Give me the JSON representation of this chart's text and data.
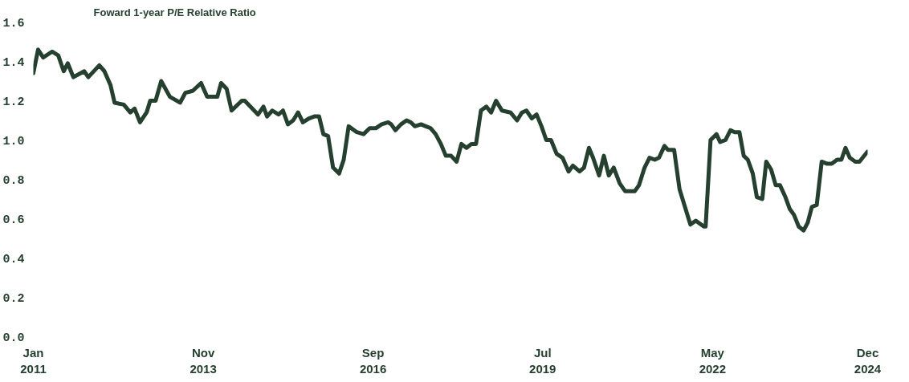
{
  "chart_data": {
    "type": "line",
    "title": "Foward 1-year P/E Relative Ratio",
    "xlim": [
      "2011-01",
      "2024-12"
    ],
    "ylim": [
      0,
      1.6
    ],
    "xticks": [
      {
        "value": "2011-01",
        "label": "Jan\n2011"
      },
      {
        "value": "2013-11",
        "label": "Nov\n2013"
      },
      {
        "value": "2016-09",
        "label": "Sep\n2016"
      },
      {
        "value": "2019-07",
        "label": "Jul\n2019"
      },
      {
        "value": "2022-05",
        "label": "May\n2022"
      },
      {
        "value": "2024-12",
        "label": "Dec\n2024"
      }
    ],
    "yticks": [
      {
        "value": 0,
        "label": "0.0"
      },
      0.2,
      0.4,
      0.6,
      0.8,
      {
        "value": 1,
        "label": "1.0"
      },
      1.2,
      1.4,
      1.6
    ],
    "grid": false,
    "series": [
      {
        "color": "#26402f",
        "x": [
          "2011-01-01",
          "2011-01-30",
          "2011-03-02",
          "2011-04-26",
          "2011-06-02",
          "2011-07-05",
          "2011-07-30",
          "2011-09-02",
          "2011-11-07",
          "2011-12-02",
          "2012-02-07",
          "2012-03-09",
          "2012-04-15",
          "2012-05-10",
          "2012-07-05",
          "2012-08-14",
          "2012-09-09",
          "2012-10-12",
          "2012-11-21",
          "2012-12-13",
          "2013-01-15",
          "2013-02-18",
          "2013-04-12",
          "2013-06-13",
          "2013-07-15",
          "2013-08-29",
          "2013-10-19",
          "2013-11-25",
          "2013-12-27",
          "2014-01-26",
          "2014-02-18",
          "2014-03-24",
          "2014-04-23",
          "2014-06-24",
          "2014-07-12",
          "2014-10-01",
          "2014-11-03",
          "2014-11-25",
          "2014-12-27",
          "2015-02-03",
          "2015-03-02",
          "2015-04-01",
          "2015-05-03",
          "2015-06-02",
          "2015-07-01",
          "2015-08-07",
          "2015-09-09",
          "2015-10-08",
          "2015-11-03",
          "2015-12-02",
          "2016-01-01",
          "2016-02-07",
          "2016-03-06",
          "2016-04-05",
          "2016-05-25",
          "2016-07-05",
          "2016-08-11",
          "2016-09-17",
          "2016-10-23",
          "2016-12-02",
          "2016-12-20",
          "2017-01-15",
          "2017-02-18",
          "2017-03-24",
          "2017-04-19",
          "2017-05-14",
          "2017-06-20",
          "2017-07-19",
          "2017-08-18",
          "2017-09-17",
          "2017-10-19",
          "2017-11-18",
          "2017-12-20",
          "2018-01-23",
          "2018-02-21",
          "2018-03-24",
          "2018-04-23",
          "2018-05-21",
          "2018-06-20",
          "2018-07-23",
          "2018-08-21",
          "2018-09-20",
          "2018-10-26",
          "2018-12-17",
          "2019-01-26",
          "2019-02-25",
          "2019-03-24",
          "2019-04-26",
          "2019-05-25",
          "2019-06-24",
          "2019-07-23",
          "2019-08-21",
          "2019-09-24",
          "2019-10-30",
          "2019-12-06",
          "2020-01-01",
          "2020-02-11",
          "2020-03-09",
          "2020-04-08",
          "2020-05-03",
          "2020-06-09",
          "2020-07-08",
          "2020-08-07",
          "2020-09-06",
          "2020-10-12",
          "2020-11-14",
          "2021-01-12",
          "2021-02-07",
          "2021-03-13",
          "2021-04-12",
          "2021-05-14",
          "2021-06-09",
          "2021-07-12",
          "2021-08-03",
          "2021-09-09",
          "2021-10-12",
          "2021-11-14",
          "2021-12-17",
          "2022-01-19",
          "2022-03-09",
          "2022-03-20",
          "2022-04-19",
          "2022-05-25",
          "2022-06-16",
          "2022-07-19",
          "2022-08-18",
          "2022-09-13",
          "2022-10-12",
          "2022-11-07",
          "2022-12-02",
          "2023-01-01",
          "2023-01-26",
          "2023-02-28",
          "2023-03-24",
          "2023-04-23",
          "2023-05-21",
          "2023-06-16",
          "2023-07-19",
          "2023-08-14",
          "2023-09-09",
          "2023-10-08",
          "2023-11-07",
          "2023-12-02",
          "2023-12-27",
          "2024-01-26",
          "2024-02-25",
          "2024-03-27",
          "2024-04-26",
          "2024-05-29",
          "2024-06-24",
          "2024-07-19",
          "2024-08-14",
          "2024-09-17",
          "2024-10-12",
          "2024-11-29"
        ],
        "values": [
          1.34,
          1.46,
          1.42,
          1.45,
          1.43,
          1.35,
          1.39,
          1.32,
          1.35,
          1.32,
          1.38,
          1.35,
          1.28,
          1.19,
          1.18,
          1.14,
          1.16,
          1.09,
          1.14,
          1.2,
          1.2,
          1.3,
          1.22,
          1.19,
          1.24,
          1.25,
          1.29,
          1.22,
          1.22,
          1.22,
          1.29,
          1.26,
          1.15,
          1.2,
          1.2,
          1.13,
          1.17,
          1.12,
          1.15,
          1.13,
          1.15,
          1.08,
          1.1,
          1.14,
          1.09,
          1.11,
          1.12,
          1.12,
          1.03,
          1.02,
          0.86,
          0.83,
          0.9,
          1.07,
          1.04,
          1.03,
          1.06,
          1.06,
          1.08,
          1.09,
          1.08,
          1.05,
          1.08,
          1.1,
          1.09,
          1.07,
          1.08,
          1.07,
          1.06,
          1.03,
          0.98,
          0.92,
          0.92,
          0.89,
          0.98,
          0.96,
          0.98,
          0.98,
          1.15,
          1.17,
          1.14,
          1.2,
          1.15,
          1.14,
          1.1,
          1.14,
          1.15,
          1.11,
          1.13,
          1.07,
          1.0,
          1.0,
          0.93,
          0.91,
          0.84,
          0.87,
          0.84,
          0.86,
          0.96,
          0.91,
          0.82,
          0.92,
          0.82,
          0.86,
          0.78,
          0.74,
          0.74,
          0.77,
          0.86,
          0.91,
          0.9,
          0.91,
          0.97,
          0.95,
          0.95,
          0.75,
          0.66,
          0.57,
          0.59,
          0.56,
          0.56,
          1.0,
          1.03,
          0.99,
          1.0,
          1.05,
          1.04,
          1.04,
          0.92,
          0.9,
          0.83,
          0.71,
          0.7,
          0.89,
          0.85,
          0.77,
          0.77,
          0.71,
          0.65,
          0.62,
          0.56,
          0.54,
          0.58,
          0.66,
          0.67,
          0.89,
          0.88,
          0.88,
          0.9,
          0.9,
          0.96,
          0.91,
          0.89,
          0.89,
          0.94
        ]
      }
    ]
  }
}
